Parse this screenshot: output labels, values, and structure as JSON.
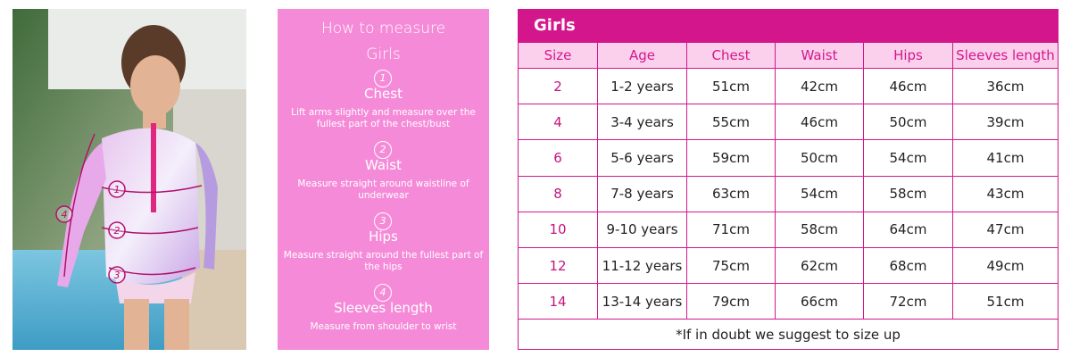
{
  "photo": {
    "markers": [
      "1",
      "2",
      "3",
      "4"
    ]
  },
  "measure_panel": {
    "title": "How to measure",
    "subtitle": "Girls",
    "steps": [
      {
        "number": "1",
        "name": "Chest",
        "description": "Lift arms slightly and measure over the fullest part of the chest/bust"
      },
      {
        "number": "2",
        "name": "Waist",
        "description": "Measure straight around waistline of underwear"
      },
      {
        "number": "3",
        "name": "Hips",
        "description": "Measure straight around the fullest part of the hips"
      },
      {
        "number": "4",
        "name": "Sleeves length",
        "description": "Measure from shoulder to wrist"
      }
    ]
  },
  "table": {
    "title": "Girls",
    "columns": [
      "Size",
      "Age",
      "Chest",
      "Waist",
      "Hips",
      "Sleeves length"
    ],
    "rows": [
      [
        "2",
        "1-2 years",
        "51cm",
        "42cm",
        "46cm",
        "36cm"
      ],
      [
        "4",
        "3-4 years",
        "55cm",
        "46cm",
        "50cm",
        "39cm"
      ],
      [
        "6",
        "5-6 years",
        "59cm",
        "50cm",
        "54cm",
        "41cm"
      ],
      [
        "8",
        "7-8 years",
        "63cm",
        "54cm",
        "58cm",
        "43cm"
      ],
      [
        "10",
        "9-10 years",
        "71cm",
        "58cm",
        "64cm",
        "47cm"
      ],
      [
        "12",
        "11-12 years",
        "75cm",
        "62cm",
        "68cm",
        "49cm"
      ],
      [
        "14",
        "13-14 years",
        "79cm",
        "66cm",
        "72cm",
        "51cm"
      ]
    ],
    "footnote": "*If in doubt we suggest to size up"
  }
}
